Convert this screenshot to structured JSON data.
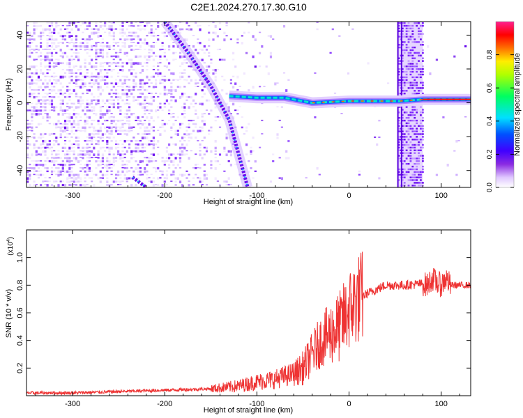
{
  "title": "C2E1.2024.270.17.30.G10",
  "chart_data": [
    {
      "type": "heatmap",
      "xlabel": "Height of straight line (km)",
      "ylabel": "Frequency (Hz)",
      "xlim": [
        -350,
        132
      ],
      "ylim": [
        -50,
        48
      ],
      "xticks": [
        -300,
        -200,
        -100,
        0,
        100
      ],
      "xtick_labels": [
        "-300",
        "-200",
        "-100",
        "0",
        "100"
      ],
      "yticks": [
        -40,
        -20,
        0,
        20,
        40
      ],
      "ytick_labels": [
        "-40",
        "-20",
        "0",
        "20",
        "40"
      ],
      "colorbar": {
        "label": "Normalized spectral amplitude",
        "range": [
          0.0,
          1.0
        ],
        "ticks": [
          0.0,
          0.2,
          0.4,
          0.6,
          0.8
        ],
        "tick_labels": [
          "0.0",
          "0.2",
          "0.4",
          "0.6",
          "0.8"
        ],
        "colormap": [
          "#ffffff",
          "#7f00ff",
          "#0000ff",
          "#00ffff",
          "#00ff00",
          "#ffff00",
          "#ff0000",
          "#ff00ff"
        ]
      },
      "features": {
        "carrier_line": [
          {
            "x": -130,
            "y": 4
          },
          {
            "x": -100,
            "y": 3
          },
          {
            "x": -70,
            "y": 3
          },
          {
            "x": -40,
            "y": 0
          },
          {
            "x": 0,
            "y": 1
          },
          {
            "x": 55,
            "y": 1
          },
          {
            "x": 80,
            "y": 2
          },
          {
            "x": 132,
            "y": 2
          }
        ],
        "upper_diagonal": [
          {
            "x": -200,
            "y": 48
          },
          {
            "x": -175,
            "y": 30
          },
          {
            "x": -150,
            "y": 10
          },
          {
            "x": -130,
            "y": -10
          },
          {
            "x": -110,
            "y": -50
          }
        ],
        "lower_diagonal": [
          {
            "x": -235,
            "y": -44
          },
          {
            "x": -220,
            "y": -50
          }
        ],
        "vertical_bands": [
          [
            53,
            57
          ],
          [
            57,
            80
          ]
        ]
      }
    },
    {
      "type": "line",
      "xlabel": "Height of straight line (km)",
      "ylabel": "SNR (10 * v/v)",
      "multiplier_label": "(x10",
      "multiplier_exponent": "4",
      "xlim": [
        -350,
        132
      ],
      "ylim": [
        0,
        1.2
      ],
      "xticks": [
        -300,
        -200,
        -100,
        0,
        100
      ],
      "xtick_labels": [
        "-300",
        "-200",
        "-100",
        "0",
        "100"
      ],
      "yticks": [
        0.2,
        0.4,
        0.6,
        0.8,
        1.0
      ],
      "ytick_labels": [
        "0.2",
        "0.4",
        "0.6",
        "0.8",
        "1.0"
      ],
      "line_color": "#ee3333",
      "series": [
        {
          "x": [
            -350,
            -300,
            -250,
            -200,
            -150,
            -120,
            -100,
            -80,
            -60,
            -50,
            -40,
            -30,
            -20,
            -10,
            0,
            10,
            20,
            40,
            60,
            80,
            85,
            90,
            95,
            100,
            105,
            110,
            120,
            132
          ],
          "values": [
            0.02,
            0.02,
            0.03,
            0.04,
            0.05,
            0.07,
            0.1,
            0.12,
            0.16,
            0.2,
            0.3,
            0.4,
            0.45,
            0.5,
            0.62,
            0.7,
            0.74,
            0.8,
            0.8,
            0.81,
            0.8,
            0.85,
            0.82,
            0.8,
            0.85,
            0.8,
            0.8,
            0.8
          ]
        }
      ]
    }
  ]
}
